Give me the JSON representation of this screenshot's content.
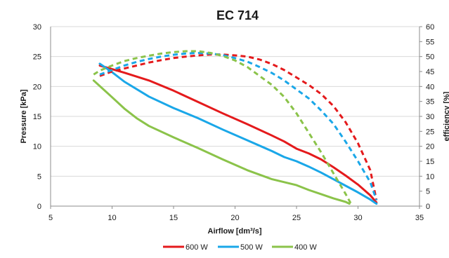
{
  "chart_data": {
    "type": "line",
    "title": "EC 714",
    "xlabel": "Airflow [dm³/s]",
    "ylabel": "Pressure [kPa]",
    "y2label": "efficiency [%]",
    "xlim": [
      5,
      35
    ],
    "ylim": [
      0,
      30
    ],
    "y2lim": [
      0,
      60
    ],
    "xticks": [
      5,
      10,
      15,
      20,
      25,
      30,
      35
    ],
    "yticks": [
      0,
      5,
      10,
      15,
      20,
      25,
      30
    ],
    "y2ticks": [
      0,
      5,
      10,
      15,
      20,
      25,
      30,
      35,
      40,
      45,
      50,
      55,
      60
    ],
    "grid": true,
    "legend_position": "bottom",
    "series": [
      {
        "name": "600 W",
        "color": "#e41a1c",
        "axis": "pressure",
        "dash": false,
        "x": [
          9,
          11,
          13,
          15,
          17,
          19,
          21,
          23,
          24,
          25,
          26,
          27,
          28,
          29,
          30,
          31,
          31.5
        ],
        "y": [
          23.5,
          22.3,
          21,
          19.3,
          17.4,
          15.5,
          13.7,
          11.8,
          10.8,
          9.6,
          8.8,
          7.8,
          6.5,
          5.1,
          3.6,
          1.8,
          0.6
        ]
      },
      {
        "name": "500 W",
        "color": "#1aa7e8",
        "axis": "pressure",
        "dash": false,
        "x": [
          9,
          10,
          11,
          13,
          15,
          17,
          19,
          21,
          23,
          24,
          25,
          26,
          27,
          28,
          29,
          30,
          31,
          31.5
        ],
        "y": [
          23.8,
          22.4,
          20.8,
          18.3,
          16.4,
          14.7,
          12.8,
          11,
          9.2,
          8.2,
          7.5,
          6.6,
          5.6,
          4.5,
          3.4,
          2.3,
          1.1,
          0.4
        ]
      },
      {
        "name": "400 W",
        "color": "#8bc34a",
        "axis": "pressure",
        "dash": false,
        "x": [
          8.5,
          10,
          11,
          12,
          13,
          15,
          17,
          19,
          21,
          23,
          25,
          26,
          27,
          28,
          29,
          29.3
        ],
        "y": [
          21,
          18.2,
          16.3,
          14.7,
          13.4,
          11.5,
          9.7,
          7.8,
          6,
          4.5,
          3.5,
          2.7,
          2,
          1.3,
          0.7,
          0.4
        ]
      },
      {
        "name": "600 W",
        "color": "#e41a1c",
        "axis": "efficiency",
        "dash": true,
        "x": [
          9,
          10,
          11,
          12,
          13,
          14,
          15,
          16,
          17,
          18,
          19,
          20,
          21,
          22,
          23,
          24,
          25,
          26,
          27,
          28,
          29,
          30,
          31,
          31.5
        ],
        "y": [
          43.5,
          45,
          46,
          47,
          48,
          48.8,
          49.5,
          50,
          50.4,
          50.7,
          50.7,
          50.4,
          50,
          49,
          47.5,
          45.5,
          43,
          40.5,
          37.5,
          33.5,
          28,
          21,
          12,
          2
        ]
      },
      {
        "name": "500 W",
        "color": "#1aa7e8",
        "axis": "efficiency",
        "dash": true,
        "x": [
          9,
          10,
          11,
          12,
          13,
          14,
          15,
          16,
          17,
          18,
          19,
          20,
          21,
          22,
          23,
          24,
          25,
          26,
          27,
          28,
          29,
          30,
          31,
          31.5
        ],
        "y": [
          44,
          45.5,
          47,
          48.2,
          49.2,
          50,
          50.6,
          51,
          51.2,
          51,
          50.5,
          49.5,
          48.3,
          46.5,
          44.5,
          42,
          39,
          36,
          32,
          27.5,
          21.5,
          15,
          8,
          2
        ]
      },
      {
        "name": "400 W",
        "color": "#8bc34a",
        "axis": "efficiency",
        "dash": true,
        "x": [
          8.5,
          9,
          10,
          11,
          12,
          13,
          14,
          15,
          16,
          17,
          18,
          19,
          20,
          21,
          22,
          23,
          24,
          25,
          26,
          27,
          28,
          29,
          29.4
        ],
        "y": [
          44,
          45.3,
          47,
          48.5,
          49.5,
          50.3,
          51,
          51.5,
          51.8,
          51.8,
          51.2,
          50.2,
          48.7,
          46.5,
          43.5,
          40.5,
          36.5,
          31,
          24.5,
          18,
          11,
          4,
          1
        ]
      }
    ],
    "legend": [
      {
        "name": "600 W",
        "color": "#e41a1c"
      },
      {
        "name": "500 W",
        "color": "#1aa7e8"
      },
      {
        "name": "400 W",
        "color": "#8bc34a"
      }
    ]
  }
}
